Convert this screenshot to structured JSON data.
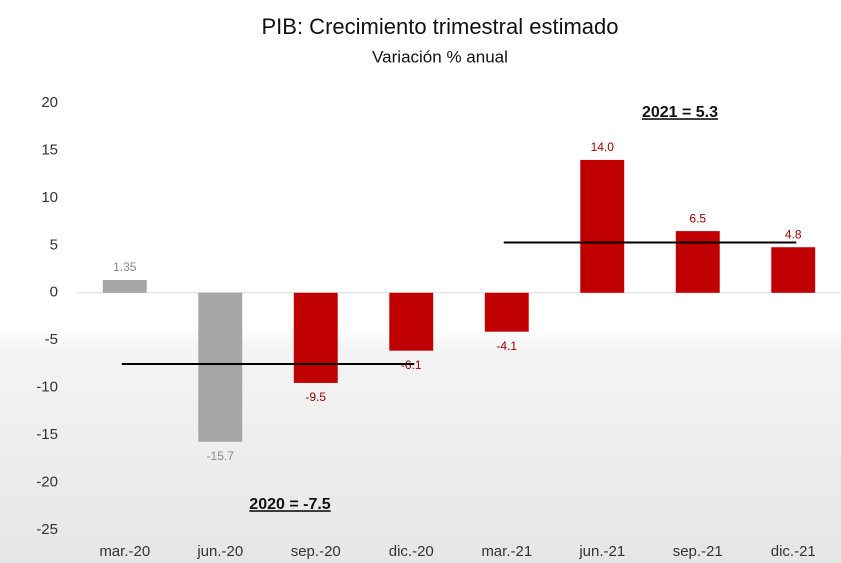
{
  "chart_data": {
    "type": "bar",
    "title": "PIB: Crecimiento trimestral estimado",
    "subtitle": "Variación % anual",
    "categories": [
      "mar.-20",
      "jun.-20",
      "sep.-20",
      "dic.-20",
      "mar.-21",
      "jun.-21",
      "sep.-21",
      "dic.-21"
    ],
    "values": [
      1.35,
      -15.7,
      -9.5,
      -6.1,
      -4.1,
      14.0,
      6.5,
      4.8
    ],
    "value_labels": [
      "1.35",
      "-15.7",
      "-9.5",
      "-6.1",
      "-4.1",
      "14.0",
      "6.5",
      "4.8"
    ],
    "colors": [
      "#a6a6a6",
      "#a6a6a6",
      "#c00000",
      "#c00000",
      "#c00000",
      "#c00000",
      "#c00000",
      "#c00000"
    ],
    "ylim": [
      -25,
      20
    ],
    "yticks": [
      -25,
      -20,
      -15,
      -10,
      -5,
      0,
      5,
      10,
      15,
      20
    ],
    "annotations": [
      {
        "text": "2020 = -7.5",
        "value": -7.5,
        "start": "mar.-20",
        "end": "dic.-20"
      },
      {
        "text": "2021 = 5.3",
        "value": 5.3,
        "start": "mar.-21",
        "end": "dic.-21"
      }
    ]
  }
}
